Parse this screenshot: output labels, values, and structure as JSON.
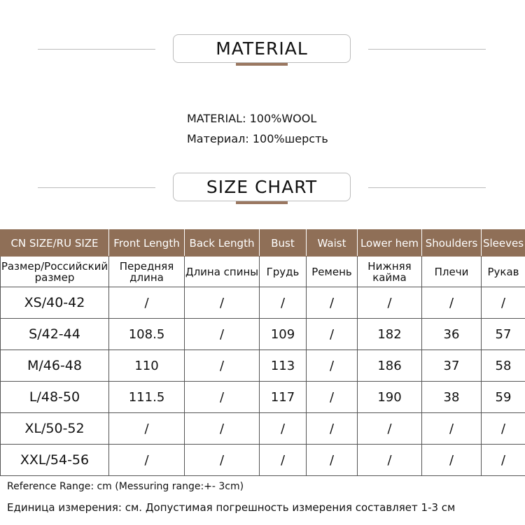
{
  "material_section": {
    "title": "MATERIAL",
    "lines": [
      {
        "label": "MATERIAL:",
        "value": "100%WOOL"
      },
      {
        "label": "Материал:",
        "value": "100%шерсть"
      }
    ]
  },
  "size_section": {
    "title": "SIZE CHART"
  },
  "table": {
    "headers": [
      "CN SIZE/RU SIZE",
      "Front Length",
      "Back Length",
      "Bust",
      "Waist",
      "Lower hem",
      "Shoulders",
      "Sleeves"
    ],
    "subheaders": [
      "Размер/Российский размер",
      "Передняя длина",
      "Длина спины",
      "Грудь",
      "Ремень",
      "Нижняя кайма",
      "Плечи",
      "Рукав"
    ],
    "rows": [
      [
        "XS/40-42",
        "/",
        "/",
        "/",
        "/",
        "/",
        "/",
        "/"
      ],
      [
        "S/42-44",
        "108.5",
        "/",
        "109",
        "/",
        "182",
        "36",
        "57"
      ],
      [
        "M/46-48",
        "110",
        "/",
        "113",
        "/",
        "186",
        "37",
        "58"
      ],
      [
        "L/48-50",
        "111.5",
        "/",
        "117",
        "/",
        "190",
        "38",
        "59"
      ],
      [
        "XL/50-52",
        "/",
        "/",
        "/",
        "/",
        "/",
        "/",
        "/"
      ],
      [
        "XXL/54-56",
        "/",
        "/",
        "/",
        "/",
        "/",
        "/",
        "/"
      ]
    ]
  },
  "footer": {
    "en": "Reference Range: cm (Messuring range:+- 3cm)",
    "ru": "Единица измерения: см. Допустимая погрешность измерения составляет 1-3 см"
  },
  "colors": {
    "header_bg": "#8f6f57",
    "accent_bar": "#9a7760"
  }
}
